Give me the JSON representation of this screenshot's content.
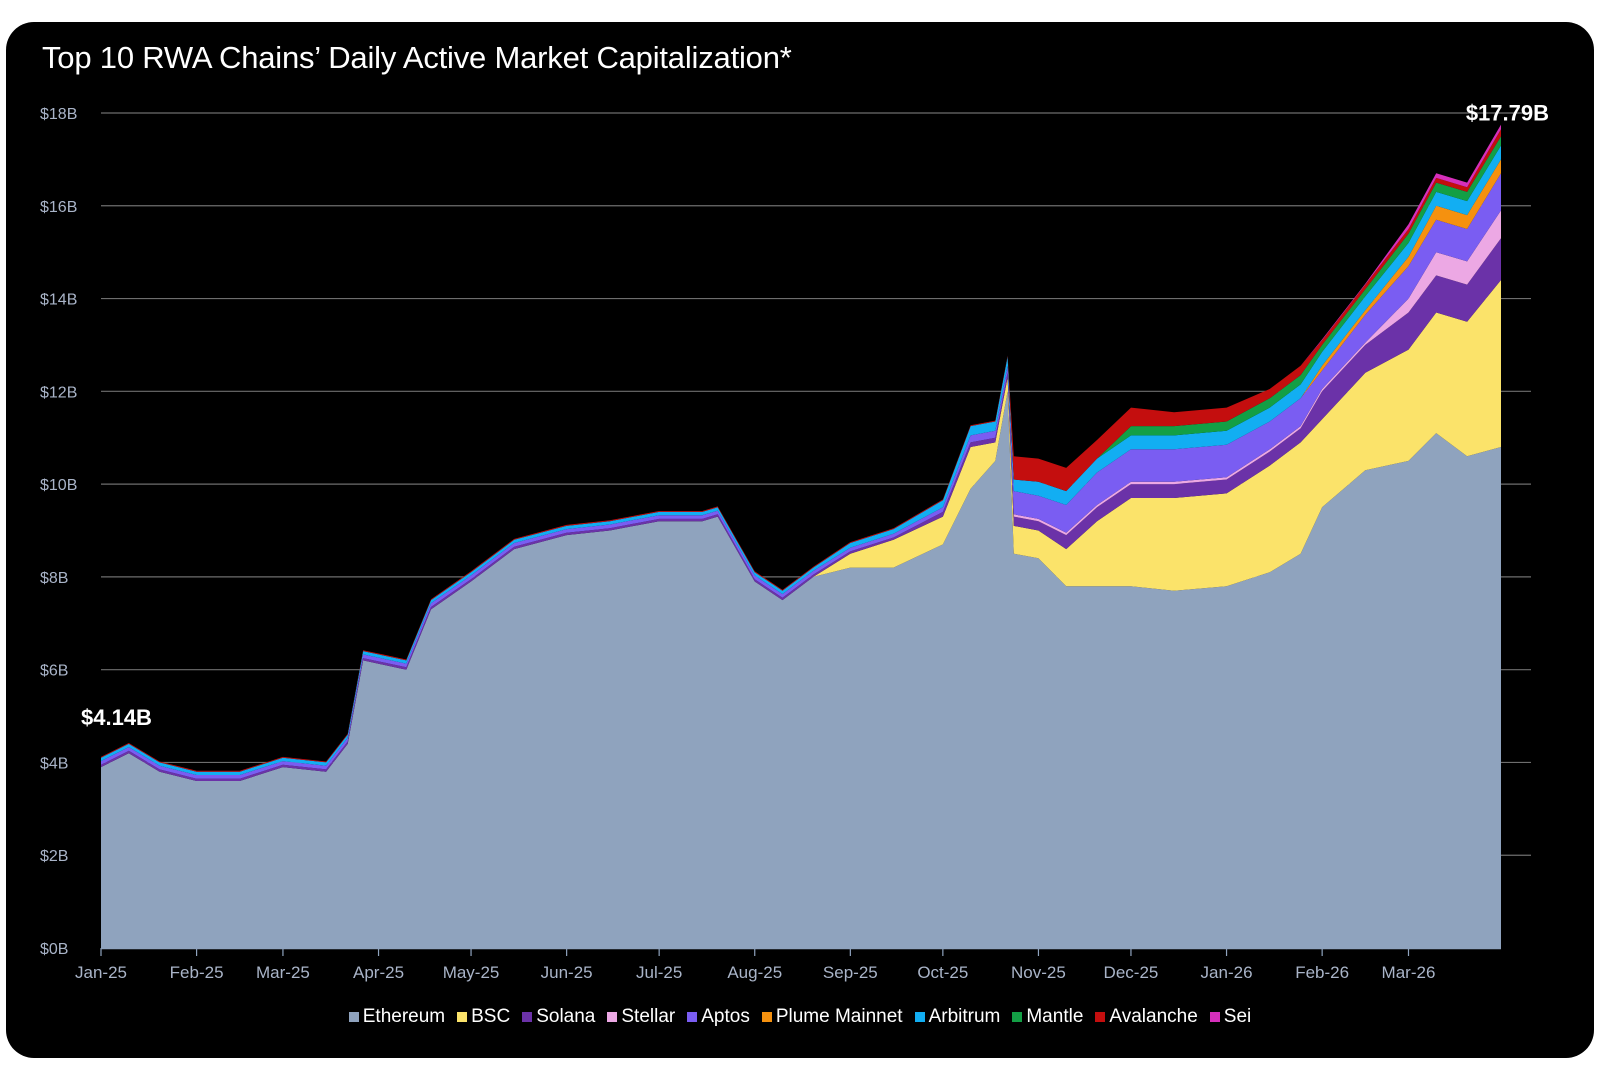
{
  "chart_data": {
    "type": "area",
    "stacked": true,
    "title": "Top 10 RWA Chains’ Daily Active Market Capitalization*",
    "xlabel": "",
    "ylabel": "",
    "ylim": [
      0,
      18
    ],
    "yticks": [
      "$0B",
      "$2B",
      "$4B",
      "$6B",
      "$8B",
      "$10B",
      "$12B",
      "$14B",
      "$16B",
      "$18B"
    ],
    "xticks": [
      "Jan-25",
      "Feb-25",
      "Mar-25",
      "Apr-25",
      "May-25",
      "Jun-25",
      "Jul-25",
      "Aug-25",
      "Sep-25",
      "Oct-25",
      "Nov-25",
      "Dec-25",
      "Jan-26",
      "Feb-26",
      "Mar-26"
    ],
    "grid": true,
    "legend_position": "bottom",
    "x": [
      "2025-01-01",
      "2025-01-10",
      "2025-01-20",
      "2025-02-01",
      "2025-02-15",
      "2025-03-01",
      "2025-03-15",
      "2025-03-22",
      "2025-03-27",
      "2025-04-10",
      "2025-04-18",
      "2025-05-01",
      "2025-05-15",
      "2025-06-01",
      "2025-06-15",
      "2025-07-01",
      "2025-07-15",
      "2025-07-20",
      "2025-08-01",
      "2025-08-10",
      "2025-08-20",
      "2025-09-01",
      "2025-09-15",
      "2025-10-01",
      "2025-10-10",
      "2025-10-18",
      "2025-10-22",
      "2025-10-24",
      "2025-11-01",
      "2025-11-10",
      "2025-11-20",
      "2025-12-01",
      "2025-12-15",
      "2026-01-01",
      "2026-01-15",
      "2026-01-25",
      "2026-02-01",
      "2026-02-15",
      "2026-03-01",
      "2026-03-10",
      "2026-03-20",
      "2026-03-31"
    ],
    "series": [
      {
        "name": "Ethereum",
        "values": [
          3.9,
          4.2,
          3.8,
          3.6,
          3.6,
          3.9,
          3.8,
          4.4,
          6.2,
          6.0,
          7.3,
          7.9,
          8.6,
          8.9,
          9.0,
          9.2,
          9.2,
          9.3,
          7.9,
          7.5,
          8.0,
          8.2,
          8.2,
          8.7,
          9.9,
          10.5,
          12.0,
          8.5,
          8.4,
          7.8,
          7.8,
          7.8,
          7.7,
          7.8,
          8.1,
          8.5,
          9.5,
          10.3,
          10.5,
          11.1,
          10.6,
          10.8
        ]
      },
      {
        "name": "BSC",
        "values": [
          0,
          0,
          0,
          0,
          0,
          0,
          0,
          0,
          0,
          0,
          0,
          0,
          0,
          0,
          0,
          0,
          0,
          0,
          0,
          0,
          0,
          0.3,
          0.6,
          0.6,
          0.9,
          0.4,
          0.3,
          0.6,
          0.6,
          0.8,
          1.4,
          1.9,
          2.0,
          2.0,
          2.3,
          2.4,
          1.9,
          2.1,
          2.4,
          2.6,
          2.9,
          3.6
        ]
      },
      {
        "name": "Solana",
        "values": [
          0.05,
          0.05,
          0.05,
          0.05,
          0.05,
          0.05,
          0.05,
          0.05,
          0.05,
          0.05,
          0.05,
          0.05,
          0.05,
          0.05,
          0.05,
          0.05,
          0.05,
          0.05,
          0.05,
          0.05,
          0.05,
          0.05,
          0.05,
          0.1,
          0.1,
          0.1,
          0.1,
          0.2,
          0.2,
          0.3,
          0.3,
          0.3,
          0.3,
          0.3,
          0.3,
          0.3,
          0.6,
          0.6,
          0.8,
          0.8,
          0.8,
          0.9
        ]
      },
      {
        "name": "Stellar",
        "values": [
          0,
          0,
          0,
          0,
          0,
          0,
          0,
          0,
          0,
          0,
          0,
          0,
          0,
          0,
          0,
          0,
          0,
          0,
          0,
          0,
          0,
          0,
          0,
          0,
          0,
          0,
          0,
          0.05,
          0.05,
          0.05,
          0.05,
          0.05,
          0.05,
          0.05,
          0.05,
          0.05,
          0.05,
          0.05,
          0.3,
          0.5,
          0.5,
          0.6
        ]
      },
      {
        "name": "Aptos",
        "values": [
          0.08,
          0.08,
          0.08,
          0.08,
          0.08,
          0.08,
          0.08,
          0.08,
          0.08,
          0.08,
          0.08,
          0.08,
          0.08,
          0.08,
          0.08,
          0.08,
          0.08,
          0.08,
          0.08,
          0.08,
          0.08,
          0.08,
          0.08,
          0.1,
          0.15,
          0.15,
          0.15,
          0.5,
          0.5,
          0.6,
          0.7,
          0.7,
          0.7,
          0.7,
          0.6,
          0.6,
          0.4,
          0.6,
          0.7,
          0.7,
          0.7,
          0.8
        ]
      },
      {
        "name": "Plume Mainnet",
        "values": [
          0,
          0,
          0,
          0,
          0,
          0,
          0,
          0,
          0,
          0,
          0,
          0,
          0,
          0,
          0,
          0,
          0,
          0,
          0,
          0,
          0,
          0,
          0,
          0,
          0,
          0,
          0,
          0,
          0,
          0,
          0,
          0,
          0,
          0,
          0,
          0,
          0.1,
          0.1,
          0.2,
          0.3,
          0.3,
          0.3
        ]
      },
      {
        "name": "Arbitrum",
        "values": [
          0.07,
          0.07,
          0.07,
          0.07,
          0.07,
          0.07,
          0.07,
          0.07,
          0.07,
          0.07,
          0.07,
          0.07,
          0.07,
          0.07,
          0.07,
          0.07,
          0.07,
          0.07,
          0.07,
          0.07,
          0.07,
          0.1,
          0.1,
          0.15,
          0.2,
          0.2,
          0.2,
          0.25,
          0.3,
          0.3,
          0.3,
          0.3,
          0.3,
          0.3,
          0.3,
          0.3,
          0.3,
          0.3,
          0.3,
          0.3,
          0.3,
          0.3
        ]
      },
      {
        "name": "Mantle",
        "values": [
          0,
          0,
          0,
          0,
          0,
          0,
          0,
          0,
          0,
          0,
          0,
          0,
          0,
          0,
          0,
          0,
          0,
          0,
          0,
          0,
          0,
          0,
          0,
          0,
          0,
          0,
          0,
          0,
          0,
          0,
          0,
          0.2,
          0.2,
          0.2,
          0.2,
          0.2,
          0.15,
          0.15,
          0.2,
          0.2,
          0.2,
          0.2
        ]
      },
      {
        "name": "Avalanche",
        "values": [
          0.02,
          0.02,
          0.02,
          0.02,
          0.02,
          0.02,
          0.02,
          0.02,
          0.02,
          0.02,
          0.02,
          0.02,
          0.02,
          0.02,
          0.02,
          0.02,
          0.02,
          0.02,
          0.02,
          0.02,
          0.02,
          0.02,
          0.02,
          0.02,
          0.02,
          0.02,
          0.02,
          0.5,
          0.5,
          0.5,
          0.4,
          0.4,
          0.3,
          0.3,
          0.2,
          0.2,
          0.1,
          0.1,
          0.1,
          0.1,
          0.1,
          0.15
        ]
      },
      {
        "name": "Sei",
        "values": [
          0,
          0,
          0,
          0,
          0,
          0,
          0,
          0,
          0,
          0,
          0,
          0,
          0,
          0,
          0,
          0,
          0,
          0,
          0,
          0,
          0,
          0,
          0,
          0,
          0,
          0,
          0,
          0,
          0,
          0,
          0,
          0,
          0,
          0,
          0,
          0,
          0.02,
          0.02,
          0.1,
          0.1,
          0.1,
          0.1
        ]
      }
    ],
    "colors": [
      "#8fa3be",
      "#fbe36a",
      "#6b32a8",
      "#eca8e4",
      "#7a5df2",
      "#f5910f",
      "#12aef2",
      "#139f45",
      "#c40e0e",
      "#d62fbb"
    ],
    "annotations": [
      {
        "label": "$4.14B",
        "x": "2025-01-01",
        "y": 4.14
      },
      {
        "label": "$17.79B",
        "x": "2026-03-31",
        "y": 17.79
      }
    ]
  }
}
